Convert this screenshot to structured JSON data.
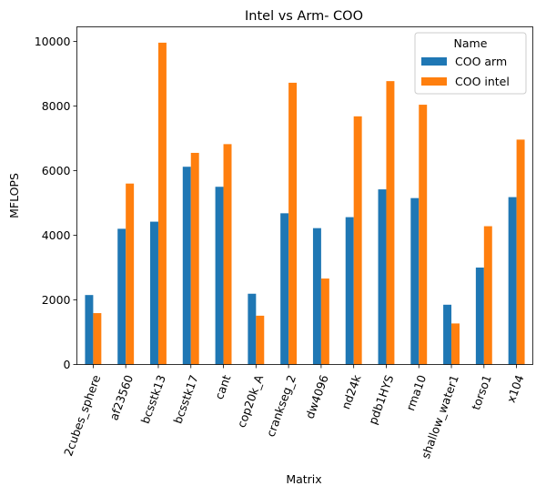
{
  "chart_data": {
    "type": "bar",
    "title": "Intel vs Arm- COO",
    "xlabel": "Matrix",
    "ylabel": "MFLOPS",
    "ylim": [
      0,
      10450
    ],
    "yticks": [
      0,
      2000,
      4000,
      6000,
      8000,
      10000
    ],
    "grid": false,
    "legend": {
      "title": "Name",
      "placement": "top-right"
    },
    "categories": [
      "2cubes_sphere",
      "af23560",
      "bcsstk13",
      "bcsstk17",
      "cant",
      "cop20k_A",
      "crankseg_2",
      "dw4096",
      "nd24k",
      "pdb1HYS",
      "rma10",
      "shallow_water1",
      "torso1",
      "x104"
    ],
    "series": [
      {
        "name": "COO arm",
        "color": "#1f77b4",
        "values": [
          2150,
          4200,
          4420,
          6120,
          5500,
          2190,
          4680,
          4220,
          4560,
          5420,
          5150,
          1850,
          3000,
          5180
        ]
      },
      {
        "name": "COO intel",
        "color": "#ff7f0e",
        "values": [
          1590,
          5600,
          9960,
          6550,
          6820,
          1510,
          8720,
          2660,
          7680,
          8770,
          8040,
          1270,
          4280,
          6960
        ]
      }
    ]
  }
}
